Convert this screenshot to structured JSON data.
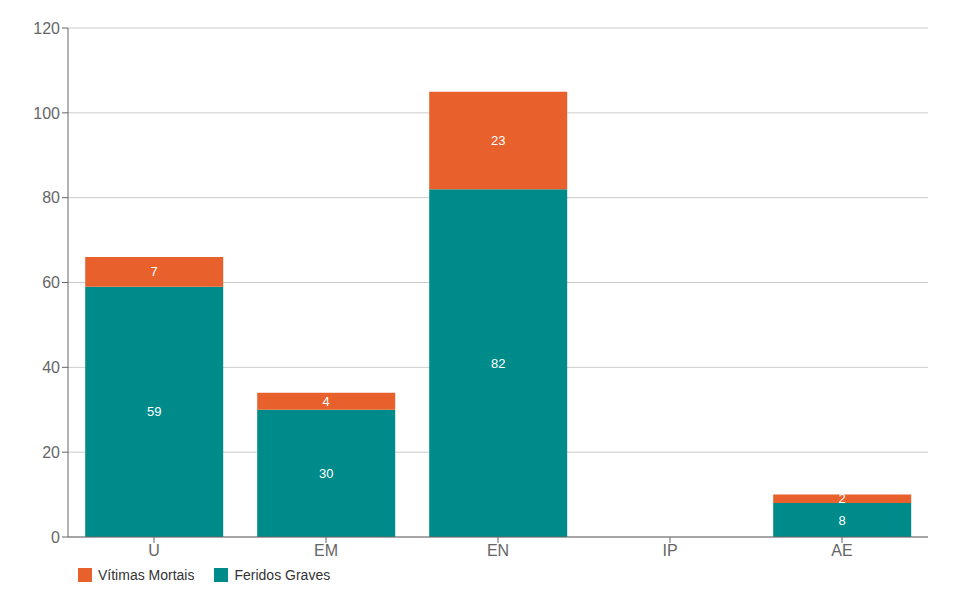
{
  "chart_data": {
    "type": "bar",
    "stacked": true,
    "categories": [
      "U",
      "EM",
      "EN",
      "IP",
      "AE"
    ],
    "series": [
      {
        "name": "Feridos Graves",
        "color": "#008B8B",
        "values": [
          59,
          30,
          82,
          0,
          8
        ]
      },
      {
        "name": "Vítimas Mortais",
        "color": "#E8612C",
        "values": [
          7,
          4,
          23,
          0,
          2
        ]
      }
    ],
    "ylim": [
      0,
      120
    ],
    "yticks": [
      0,
      20,
      40,
      60,
      80,
      100,
      120
    ],
    "grid": true,
    "data_labels": true,
    "legend": "lower left"
  }
}
